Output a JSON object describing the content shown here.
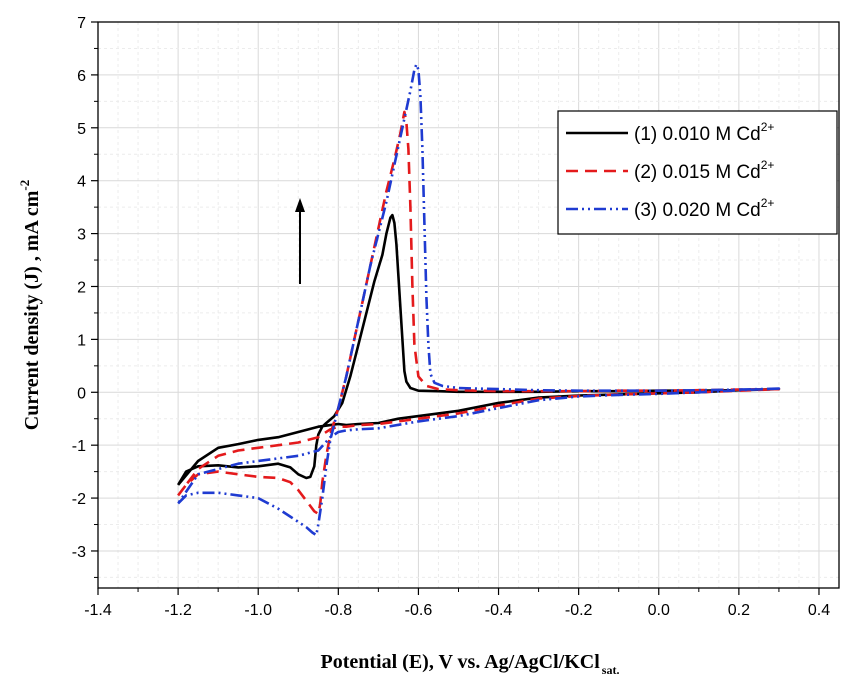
{
  "chart_data": {
    "type": "line",
    "xlabel": "Potential (E), V vs. Ag/AgCl/KCl",
    "xlabel_subscript": "sat.",
    "ylabel": "Current density (J) , mA cm",
    "ylabel_superscript": "-2",
    "xlim": [
      -1.4,
      0.45
    ],
    "ylim": [
      -3.7,
      7
    ],
    "x_ticks": [
      -1.4,
      -1.2,
      -1.0,
      -0.8,
      -0.6,
      -0.4,
      -0.2,
      0.0,
      0.2,
      0.4
    ],
    "x_tick_labels": [
      "-1.4",
      "-1.2",
      "-1.0",
      "-0.8",
      "-0.6",
      "-0.4",
      "-0.2",
      "0.0",
      "0.2",
      "0.4"
    ],
    "y_ticks": [
      -3,
      -2,
      -1,
      0,
      1,
      2,
      3,
      4,
      5,
      6,
      7
    ],
    "y_tick_labels": [
      "-3",
      "-2",
      "-1",
      "0",
      "1",
      "2",
      "3",
      "4",
      "5",
      "6",
      "7"
    ],
    "grid": true,
    "legend_position": "top-right",
    "annotation": "upward arrow indicating increasing Cd2+ concentration",
    "series": [
      {
        "name": "(1) 0.010 M Cd",
        "superscript": "2+",
        "color": "#000000",
        "dash": "solid",
        "x": [
          -1.2,
          -1.18,
          -1.15,
          -1.1,
          -1.05,
          -1.0,
          -0.95,
          -0.92,
          -0.9,
          -0.88,
          -0.87,
          -0.86,
          -0.855,
          -0.85,
          -0.84,
          -0.83,
          -0.81,
          -0.79,
          -0.77,
          -0.75,
          -0.73,
          -0.71,
          -0.69,
          -0.68,
          -0.67,
          -0.665,
          -0.66,
          -0.655,
          -0.65,
          -0.64,
          -0.635,
          -0.63,
          -0.62,
          -0.6,
          -0.55,
          -0.5,
          -0.4,
          -0.3,
          -0.2,
          -0.1,
          0.0,
          0.1,
          0.2,
          0.25,
          0.3,
          0.3,
          0.2,
          0.1,
          0.0,
          -0.1,
          -0.2,
          -0.3,
          -0.4,
          -0.5,
          -0.6,
          -0.65,
          -0.7,
          -0.75,
          -0.78,
          -0.8,
          -0.82,
          -0.85,
          -0.9,
          -0.95,
          -1.0,
          -1.05,
          -1.1,
          -1.15,
          -1.2
        ],
        "y": [
          -1.75,
          -1.5,
          -1.4,
          -1.38,
          -1.42,
          -1.4,
          -1.35,
          -1.42,
          -1.55,
          -1.62,
          -1.6,
          -1.4,
          -1.0,
          -0.8,
          -0.65,
          -0.58,
          -0.45,
          -0.2,
          0.3,
          0.9,
          1.5,
          2.1,
          2.6,
          3.0,
          3.3,
          3.35,
          3.2,
          2.8,
          2.2,
          1.0,
          0.4,
          0.2,
          0.08,
          0.03,
          0.02,
          0.01,
          0.01,
          0.01,
          0.02,
          0.02,
          0.03,
          0.03,
          0.04,
          0.05,
          0.06,
          0.06,
          0.04,
          0.0,
          -0.02,
          -0.04,
          -0.06,
          -0.1,
          -0.2,
          -0.35,
          -0.45,
          -0.5,
          -0.58,
          -0.6,
          -0.62,
          -0.6,
          -0.62,
          -0.65,
          -0.75,
          -0.85,
          -0.9,
          -0.98,
          -1.05,
          -1.3,
          -1.75
        ]
      },
      {
        "name": "(2) 0.015 M Cd",
        "superscript": "2+",
        "color": "#e41a1c",
        "dash": "12,7",
        "x": [
          -1.2,
          -1.18,
          -1.15,
          -1.1,
          -1.05,
          -1.0,
          -0.95,
          -0.92,
          -0.9,
          -0.88,
          -0.86,
          -0.85,
          -0.845,
          -0.84,
          -0.83,
          -0.82,
          -0.8,
          -0.78,
          -0.76,
          -0.74,
          -0.72,
          -0.7,
          -0.68,
          -0.66,
          -0.645,
          -0.635,
          -0.63,
          -0.625,
          -0.62,
          -0.615,
          -0.61,
          -0.6,
          -0.58,
          -0.55,
          -0.5,
          -0.4,
          -0.3,
          -0.2,
          -0.1,
          0.0,
          0.1,
          0.2,
          0.3,
          0.3,
          0.2,
          0.1,
          0.0,
          -0.1,
          -0.2,
          -0.3,
          -0.4,
          -0.5,
          -0.6,
          -0.7,
          -0.75,
          -0.78,
          -0.8,
          -0.82,
          -0.85,
          -0.9,
          -0.95,
          -1.0,
          -1.05,
          -1.1,
          -1.15,
          -1.2
        ],
        "y": [
          -1.95,
          -1.75,
          -1.55,
          -1.5,
          -1.55,
          -1.6,
          -1.62,
          -1.7,
          -1.85,
          -2.05,
          -2.25,
          -2.3,
          -2.1,
          -1.7,
          -1.2,
          -0.8,
          -0.3,
          0.3,
          1.0,
          1.7,
          2.4,
          3.1,
          3.8,
          4.4,
          4.9,
          5.3,
          5.1,
          4.6,
          3.5,
          2.0,
          0.9,
          0.3,
          0.12,
          0.06,
          0.04,
          0.02,
          0.02,
          0.02,
          0.03,
          0.03,
          0.04,
          0.05,
          0.06,
          0.06,
          0.03,
          0.0,
          -0.02,
          -0.04,
          -0.07,
          -0.12,
          -0.25,
          -0.4,
          -0.5,
          -0.6,
          -0.62,
          -0.65,
          -0.65,
          -0.7,
          -0.85,
          -0.95,
          -1.0,
          -1.05,
          -1.1,
          -1.2,
          -1.45,
          -1.95
        ]
      },
      {
        "name": "(3) 0.020 M Cd",
        "superscript": "2+",
        "color": "#1f3bd1",
        "dash": "12,4,2,4,2,4",
        "x": [
          -1.2,
          -1.18,
          -1.15,
          -1.1,
          -1.05,
          -1.0,
          -0.95,
          -0.92,
          -0.9,
          -0.88,
          -0.865,
          -0.855,
          -0.85,
          -0.84,
          -0.83,
          -0.82,
          -0.8,
          -0.78,
          -0.76,
          -0.74,
          -0.72,
          -0.7,
          -0.68,
          -0.66,
          -0.64,
          -0.62,
          -0.61,
          -0.605,
          -0.6,
          -0.595,
          -0.59,
          -0.585,
          -0.58,
          -0.575,
          -0.57,
          -0.56,
          -0.54,
          -0.5,
          -0.45,
          -0.4,
          -0.3,
          -0.2,
          -0.1,
          0.0,
          0.1,
          0.2,
          0.3,
          0.3,
          0.2,
          0.1,
          0.0,
          -0.1,
          -0.2,
          -0.3,
          -0.4,
          -0.5,
          -0.6,
          -0.7,
          -0.75,
          -0.78,
          -0.8,
          -0.82,
          -0.85,
          -0.9,
          -0.95,
          -1.0,
          -1.05,
          -1.1,
          -1.15,
          -1.2
        ],
        "y": [
          -2.1,
          -1.95,
          -1.9,
          -1.9,
          -1.95,
          -2.0,
          -2.2,
          -2.35,
          -2.45,
          -2.55,
          -2.65,
          -2.7,
          -2.5,
          -2.0,
          -1.4,
          -0.9,
          -0.3,
          0.3,
          1.0,
          1.7,
          2.4,
          3.0,
          3.6,
          4.3,
          5.0,
          5.7,
          6.1,
          6.2,
          6.1,
          5.6,
          4.6,
          3.2,
          1.8,
          0.9,
          0.35,
          0.18,
          0.12,
          0.08,
          0.07,
          0.06,
          0.04,
          0.03,
          0.03,
          0.03,
          0.04,
          0.05,
          0.07,
          0.07,
          0.04,
          0.0,
          -0.03,
          -0.05,
          -0.08,
          -0.15,
          -0.3,
          -0.45,
          -0.55,
          -0.68,
          -0.7,
          -0.72,
          -0.75,
          -0.85,
          -1.1,
          -1.2,
          -1.25,
          -1.3,
          -1.35,
          -1.45,
          -1.55,
          -2.1
        ]
      }
    ]
  }
}
